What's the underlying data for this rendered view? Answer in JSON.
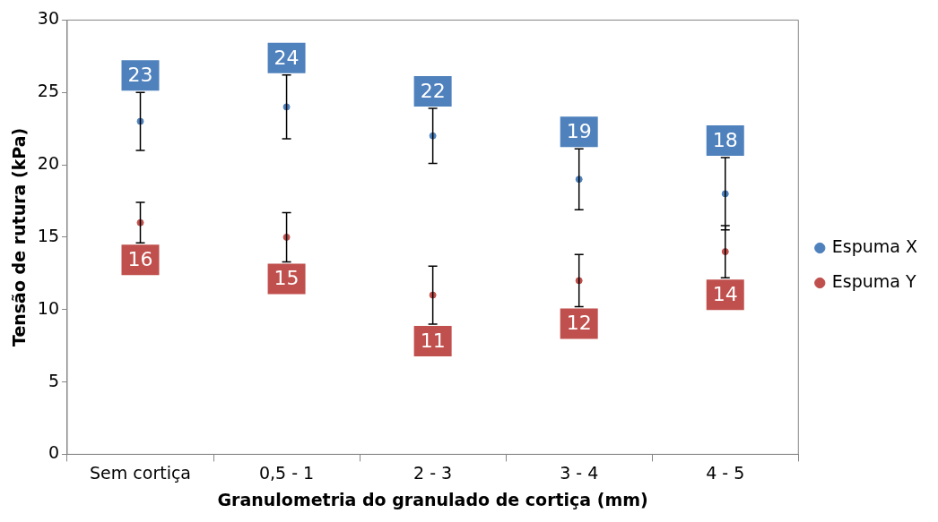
{
  "chart_data": {
    "type": "scatter",
    "xlabel": "Granulometria do granulado de cortiça (mm)",
    "ylabel": "Tensão de rutura (kPa)",
    "categories": [
      "Sem cortiça",
      "0,5 - 1",
      "2 - 3",
      "3 - 4",
      "4 - 5"
    ],
    "series": [
      {
        "name": "Espuma X",
        "color": "#4f81bd",
        "values": [
          23,
          24,
          22,
          19,
          18
        ],
        "errors": [
          2,
          2.2,
          1.9,
          2.1,
          2.5
        ]
      },
      {
        "name": "Espuma Y",
        "color": "#c0504d",
        "values": [
          16,
          15,
          11,
          12,
          14
        ],
        "errors": [
          1.4,
          1.7,
          2,
          1.8,
          1.8
        ]
      }
    ],
    "ylim": [
      0,
      30
    ],
    "yticks": [
      0,
      5,
      10,
      15,
      20,
      25,
      30
    ],
    "marker": "circle",
    "data_labels": true,
    "legend": "right",
    "grid": false
  }
}
